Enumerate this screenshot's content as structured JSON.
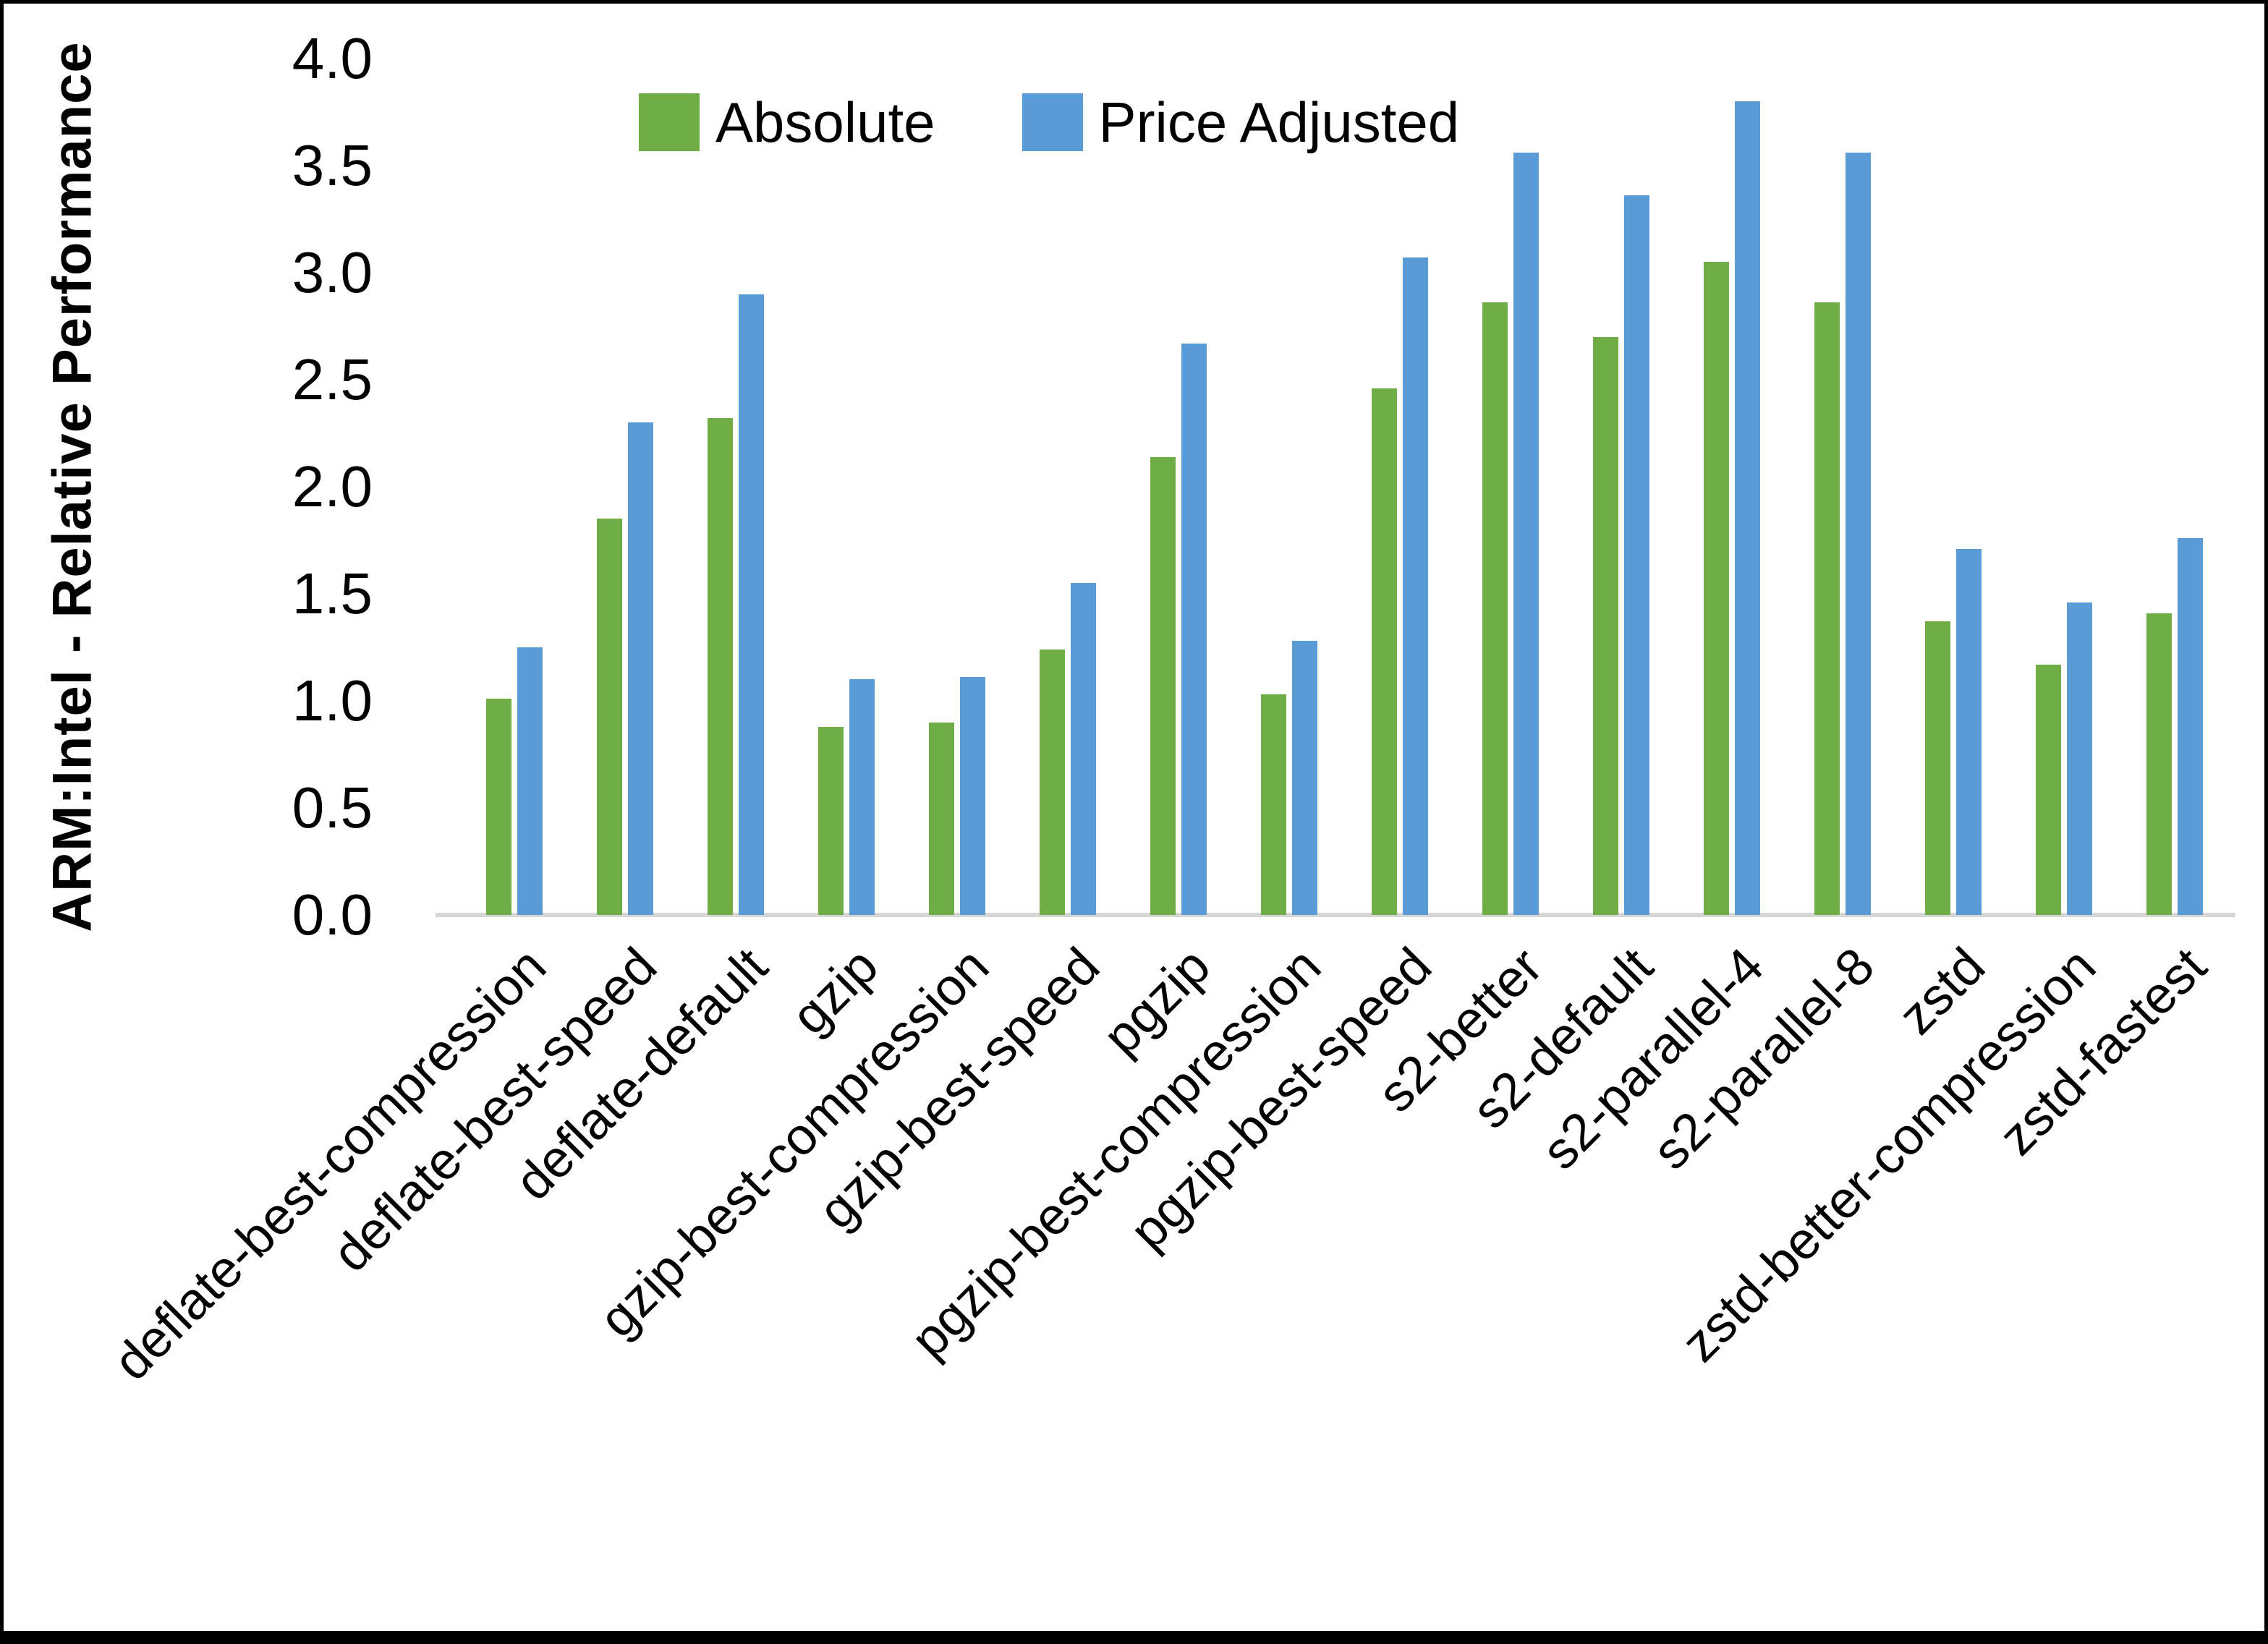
{
  "chart_data": {
    "type": "bar",
    "title": "",
    "xlabel": "",
    "ylabel": "ARM:Intel - Relative Performance",
    "ylim": [
      0.0,
      4.0
    ],
    "ytick_step": 0.5,
    "yticks": [
      "4.0",
      "3.5",
      "3.0",
      "2.5",
      "2.0",
      "1.5",
      "1.0",
      "0.5",
      "0.0"
    ],
    "grid": false,
    "legend_position": "top-center",
    "categories": [
      "deflate-best-compression",
      "deflate-best-speed",
      "deflate-default",
      "gzip",
      "gzip-best-compression",
      "gzip-best-speed",
      "pgzip",
      "pgzip-best-compression",
      "pgzip-best-speed",
      "s2-better",
      "s2-default",
      "s2-parallel-4",
      "s2-parallel-8",
      "zstd",
      "zstd-better-compression",
      "zstd-fastest"
    ],
    "series": [
      {
        "name": "Absolute",
        "color": "#70AD47",
        "values": [
          1.01,
          1.85,
          2.32,
          0.88,
          0.9,
          1.24,
          2.14,
          1.03,
          2.46,
          2.86,
          2.7,
          3.05,
          2.86,
          1.37,
          1.17,
          1.41
        ]
      },
      {
        "name": "Price Adjusted",
        "color": "#5B9BD5",
        "values": [
          1.25,
          2.3,
          2.9,
          1.1,
          1.11,
          1.55,
          2.67,
          1.28,
          3.07,
          3.56,
          3.36,
          3.8,
          3.56,
          1.71,
          1.46,
          1.76
        ]
      }
    ]
  },
  "colors": {
    "background": "#FFFFFF",
    "border": "#000000",
    "axis_line": "#D6D6D6",
    "text": "#000000"
  }
}
